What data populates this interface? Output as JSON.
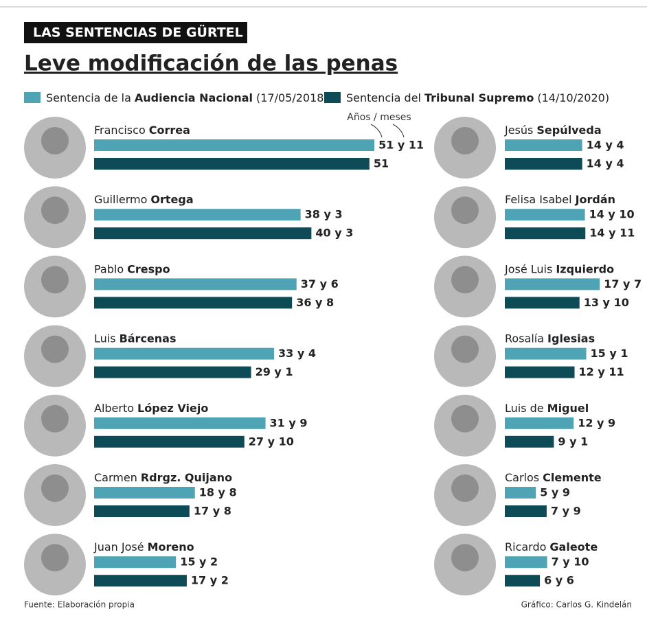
{
  "chart_data": {
    "type": "bar",
    "kicker": "LAS SENTENCIAS DE GÜRTEL",
    "title": "Leve modificación de las penas",
    "annotation": "Años / meses",
    "source": "Fuente: Elaboración propia",
    "credit": "Gráfico: Carlos G. Kindelán",
    "categories": [
      [
        "Francisco",
        "Correa"
      ],
      [
        "Guillermo",
        "Ortega"
      ],
      [
        "Pablo",
        "Crespo"
      ],
      [
        "Luis",
        "Bárcenas"
      ],
      [
        "Alberto",
        "López Viejo"
      ],
      [
        "Carmen",
        "Rdrgz. Quijano"
      ],
      [
        "Juan José",
        "Moreno"
      ],
      [
        "Jesús",
        "Sepúlveda"
      ],
      [
        "Felisa Isabel",
        "Jordán"
      ],
      [
        "José Luis",
        "Izquierdo"
      ],
      [
        "Rosalía",
        "Iglesias"
      ],
      [
        "Luis de",
        "Miguel"
      ],
      [
        "Carlos",
        "Clemente"
      ],
      [
        "Ricardo",
        "Galeote"
      ]
    ],
    "series": [
      {
        "name": [
          "Sentencia de la",
          "Audiencia Nacional",
          "(17/05/2018)"
        ],
        "color": "#4ea3b5",
        "values": [
          623,
          459,
          450,
          400,
          381,
          224,
          182,
          172,
          178,
          211,
          181,
          153,
          69,
          94
        ],
        "value_labels": [
          "51 y 11",
          "38 y 3",
          "37 y 6",
          "33 y 4",
          "31 y 9",
          "18 y 8",
          "15 y 2",
          "14 y 4",
          "14 y 10",
          "17 y 7",
          "15 y 1",
          "12 y 9",
          "5 y 9",
          "7 y 10"
        ]
      },
      {
        "name": [
          "Sentencia del",
          "Tribunal Supremo",
          "(14/10/2020)"
        ],
        "color": "#0d4c57",
        "values": [
          612,
          483,
          440,
          349,
          334,
          212,
          206,
          172,
          179,
          166,
          155,
          109,
          93,
          78
        ],
        "value_labels": [
          "51",
          "40 y 3",
          "36 y 8",
          "29 y 1",
          "27 y 10",
          "17 y 8",
          "17 y 2",
          "14 y 4",
          "14 y 11",
          "13 y 10",
          "12 y 11",
          "9 y 1",
          "7 y 9",
          "6 y 6"
        ]
      }
    ]
  }
}
